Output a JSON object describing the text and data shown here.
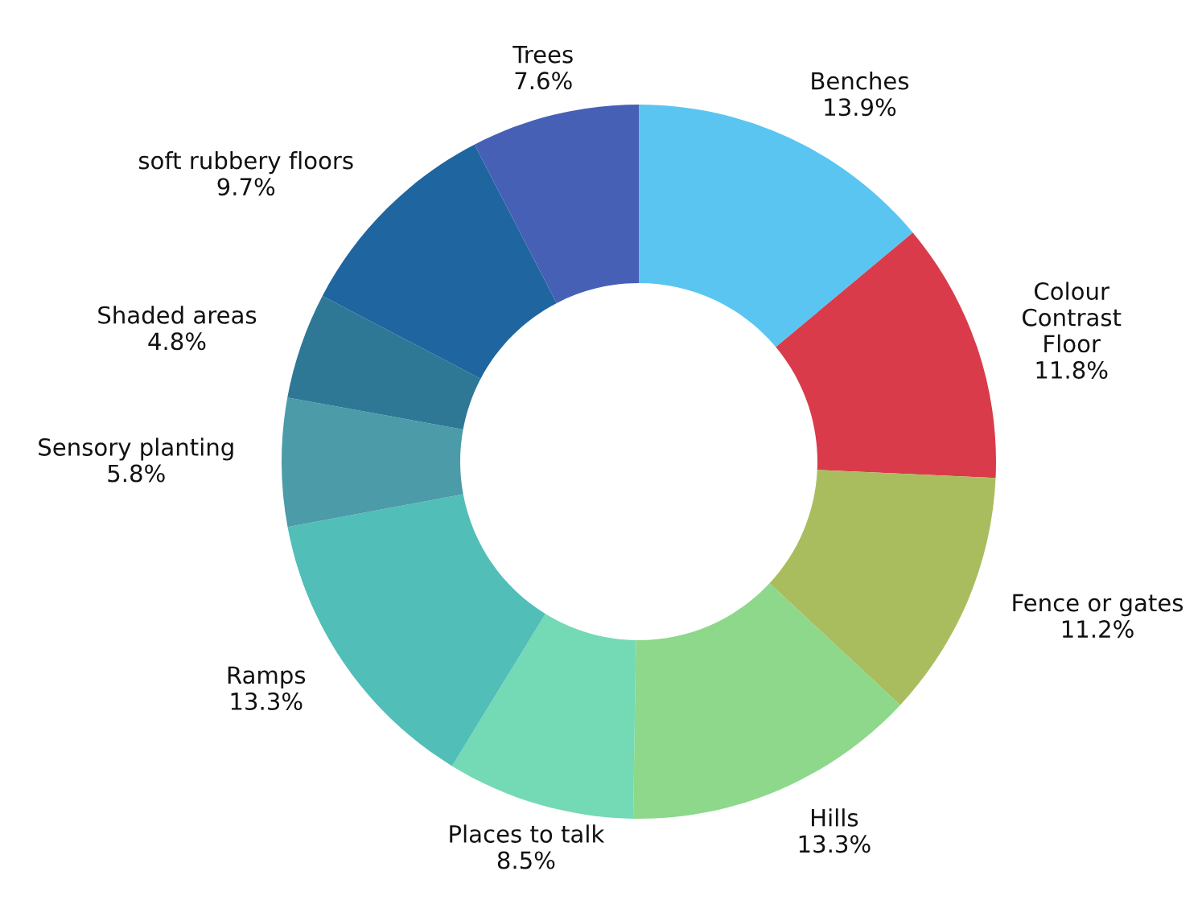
{
  "chart_data": {
    "type": "donut",
    "categories": [
      "Benches",
      "Colour\nContrast\nFloor",
      "Fence or gates",
      "Hills",
      "Places to talk",
      "Ramps",
      "Sensory planting",
      "Shaded areas",
      "soft rubbery floors",
      "Trees"
    ],
    "values": [
      13.9,
      11.8,
      11.2,
      13.3,
      8.5,
      13.3,
      5.8,
      4.8,
      9.7,
      7.6
    ],
    "value_labels": [
      "13.9%",
      "11.8%",
      "11.2%",
      "13.3%",
      "8.5%",
      "13.3%",
      "5.8%",
      "4.8%",
      "9.7%",
      "7.6%"
    ],
    "colors": [
      "#5bc5f2",
      "#d93b4a",
      "#a9bd5e",
      "#8dd88a",
      "#74d9b5",
      "#52beb8",
      "#4b9ba8",
      "#2e7896",
      "#1f65a0",
      "#4660b6"
    ],
    "legend": false
  }
}
